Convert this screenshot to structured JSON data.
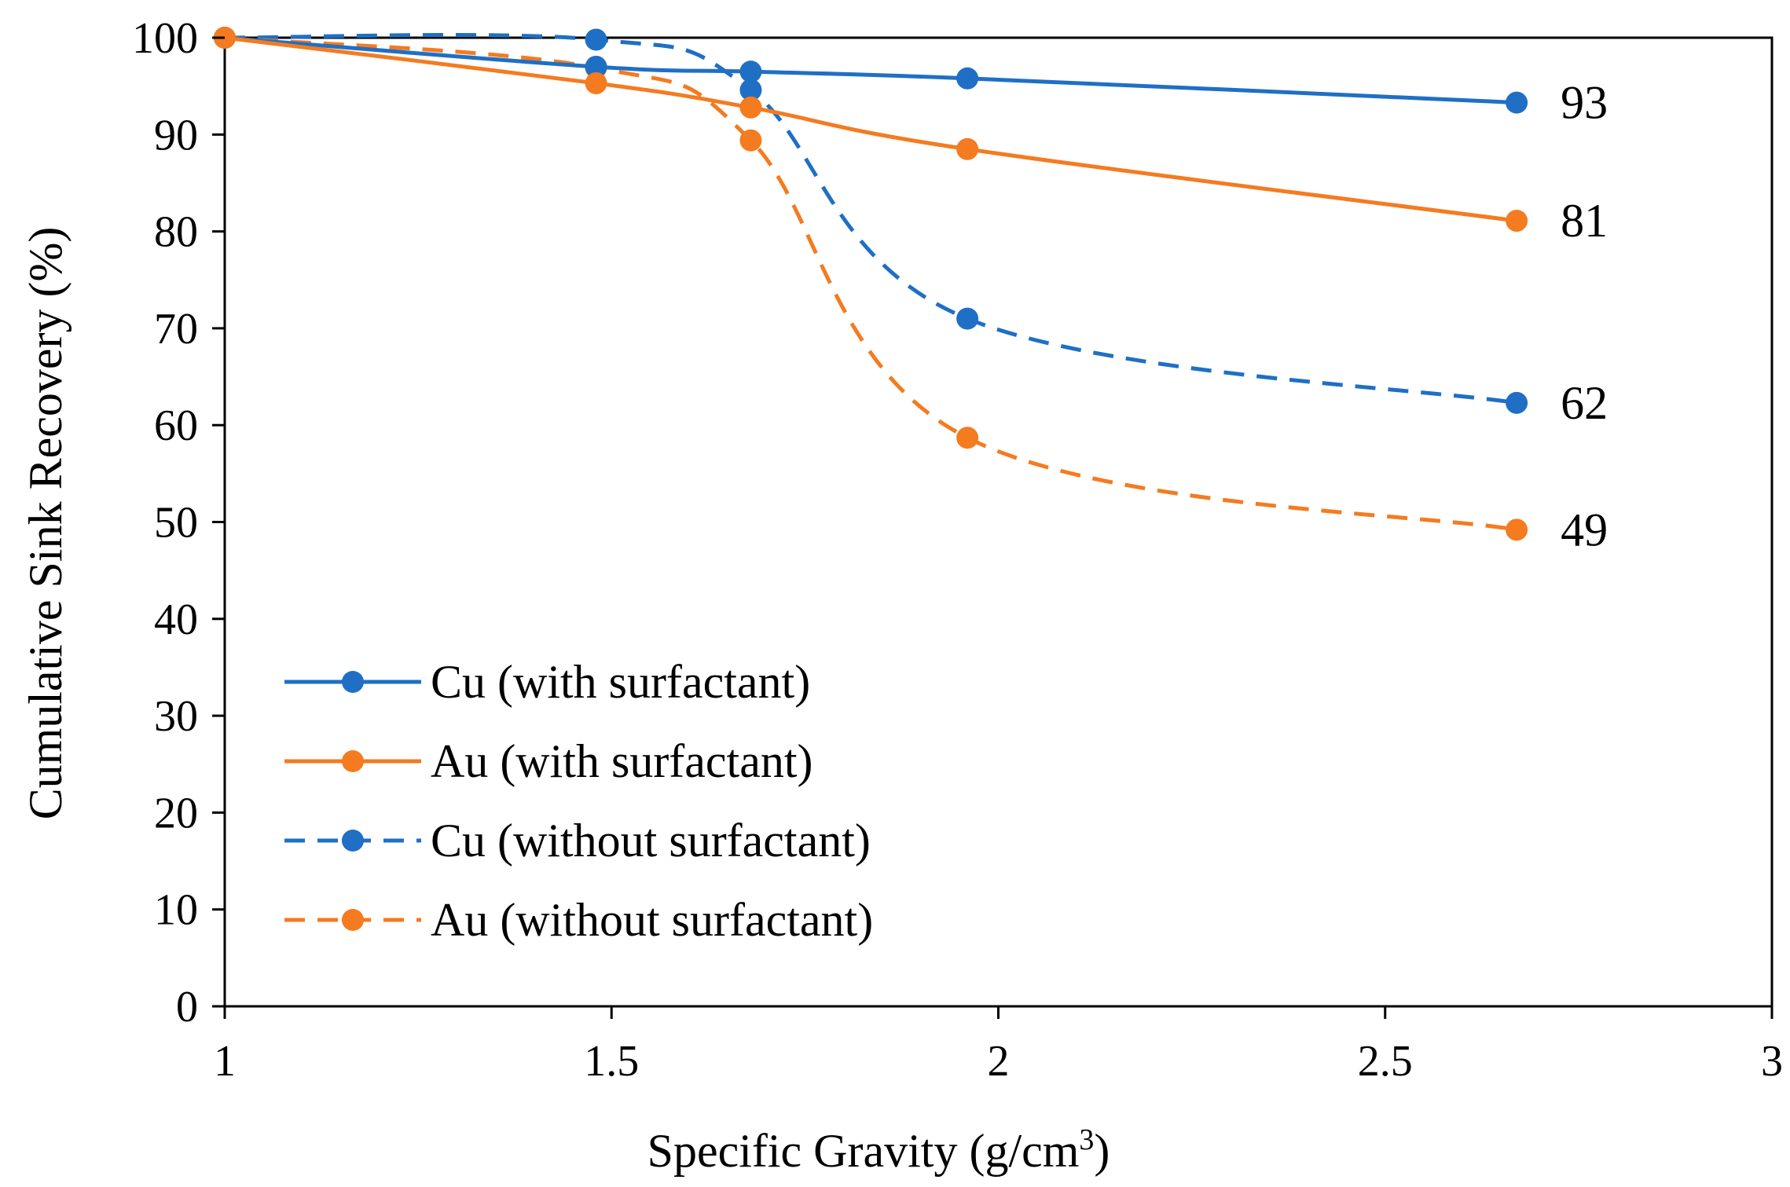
{
  "chart_data": {
    "type": "line",
    "title": "",
    "xlabel": "Specific Gravity (g/cm",
    "xlabel_superscript": "3",
    "xlabel_suffix": ")",
    "ylabel": "Cumulative Sink Recovery (%)",
    "xlim": [
      1,
      3
    ],
    "ylim": [
      0,
      100
    ],
    "xticks": [
      1,
      1.5,
      2,
      2.5,
      3
    ],
    "xtick_labels": [
      "1",
      "1.5",
      "2",
      "2.5",
      "3"
    ],
    "yticks": [
      0,
      10,
      20,
      30,
      40,
      50,
      60,
      70,
      80,
      90,
      100
    ],
    "ytick_labels": [
      "0",
      "10",
      "20",
      "30",
      "40",
      "50",
      "60",
      "70",
      "80",
      "90",
      "100"
    ],
    "grid": false,
    "legend_position": "bottom-left",
    "series": [
      {
        "name": "Cu (with surfactant)",
        "color": "#1f6fc5",
        "dash": "solid",
        "x": [
          1.0,
          1.48,
          1.68,
          1.96,
          2.67
        ],
        "y": [
          100,
          97,
          96.5,
          95.8,
          93.3
        ],
        "end_label": "93"
      },
      {
        "name": "Au (with surfactant)",
        "color": "#f47b20",
        "dash": "solid",
        "x": [
          1.0,
          1.48,
          1.68,
          1.96,
          2.67
        ],
        "y": [
          100,
          95.3,
          92.8,
          88.5,
          81.1
        ],
        "end_label": "81"
      },
      {
        "name": "Cu (without surfactant)",
        "color": "#1f6fc5",
        "dash": "dashed",
        "x": [
          1.0,
          1.48,
          1.68,
          1.96,
          2.67
        ],
        "y": [
          100,
          99.8,
          94.6,
          71,
          62.3
        ],
        "end_label": "62"
      },
      {
        "name": "Au (without surfactant)",
        "color": "#f47b20",
        "dash": "dashed",
        "x": [
          1.0,
          1.48,
          1.68,
          1.96,
          2.67
        ],
        "y": [
          100,
          96.9,
          89.4,
          58.7,
          49.2
        ],
        "end_label": "49"
      }
    ]
  }
}
